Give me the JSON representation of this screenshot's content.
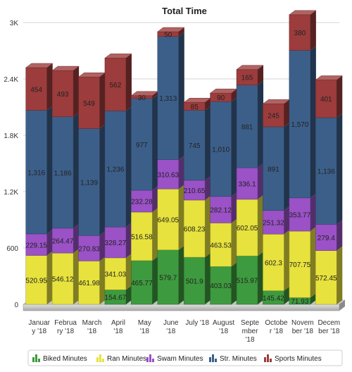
{
  "chart_data": {
    "type": "bar",
    "stacked": true,
    "title": "Total Time",
    "xlabel": "",
    "ylabel": "",
    "ylim": [
      0,
      3000
    ],
    "y_ticks": [
      "0",
      "600",
      "1.2K",
      "1.8K",
      "2.4K",
      "3K"
    ],
    "y_tick_values": [
      0,
      600,
      1200,
      1800,
      2400,
      3000
    ],
    "grid": true,
    "legend_position": "bottom",
    "categories": [
      "January '18",
      "February '18",
      "March '18",
      "April '18",
      "May '18",
      "June '18",
      "July '18",
      "August '18",
      "September '18",
      "October '18",
      "November '18",
      "December '18"
    ],
    "category_label_lines": [
      [
        "Januar",
        "y '18"
      ],
      [
        "Februa",
        "ry '18"
      ],
      [
        "March",
        "'18"
      ],
      [
        "April",
        "'18"
      ],
      [
        "May",
        "'18"
      ],
      [
        "June",
        "'18"
      ],
      [
        "July '18"
      ],
      [
        "August",
        "'18"
      ],
      [
        "Septe",
        "mber",
        "'18"
      ],
      [
        "Octobe",
        "r '18"
      ],
      [
        "Novem",
        "ber '18"
      ],
      [
        "Decem",
        "ber '18"
      ]
    ],
    "series": [
      {
        "name": "Biked Minutes",
        "color": "#3e9a3e",
        "values": [
          0,
          0,
          0,
          154.67,
          465.77,
          579.7,
          501.9,
          403.03,
          515.97,
          145.42,
          71.93,
          0
        ],
        "labels": [
          "",
          "",
          "",
          "154.67",
          "465.77",
          "579.7",
          "501.9",
          "403.03",
          "515.97",
          "145.42",
          "71.93",
          ""
        ]
      },
      {
        "name": "Ran Minutes",
        "color": "#e7e23d",
        "values": [
          520.95,
          546.12,
          461.98,
          341.03,
          516.58,
          649.05,
          608.23,
          463.53,
          602.05,
          602.3,
          707.75,
          572.45
        ],
        "labels": [
          "520.95",
          "546.12",
          "461.98",
          "341.03",
          "516.58",
          "649.05",
          "608.23",
          "463.53",
          "602.05",
          "602.3",
          "707.75",
          "572.45"
        ]
      },
      {
        "name": "Swam Minutes",
        "color": "#9a52c6",
        "values": [
          229.15,
          264.47,
          270.83,
          328.27,
          232.28,
          310.63,
          210.65,
          282.12,
          336.1,
          251.32,
          353.77,
          279.4
        ],
        "labels": [
          "229.15",
          "264.47",
          "270.83",
          "328.27",
          "232.28",
          "310.63",
          "210.65",
          "282.12",
          "336.1",
          "251.32",
          "353.77",
          "279.4"
        ]
      },
      {
        "name": "Str. Minutes",
        "color": "#3c5f8a",
        "values": [
          1316,
          1186,
          1139,
          1236,
          977,
          1313,
          745,
          1010,
          881,
          891,
          1570,
          1136
        ],
        "labels": [
          "1,316",
          "1,186",
          "1,139",
          "1,236",
          "977",
          "1,313",
          "745",
          "1,010",
          "881",
          "891",
          "1,570",
          "1,136"
        ]
      },
      {
        "name": "Sports Minutes",
        "color": "#9c3c3c",
        "values": [
          454,
          493,
          549,
          562,
          30,
          50,
          85,
          90,
          165,
          245,
          380,
          401
        ],
        "labels": [
          "454",
          "493",
          "549",
          "562",
          "30",
          "50",
          "85",
          "90",
          "165",
          "245",
          "380",
          "401"
        ]
      }
    ]
  }
}
